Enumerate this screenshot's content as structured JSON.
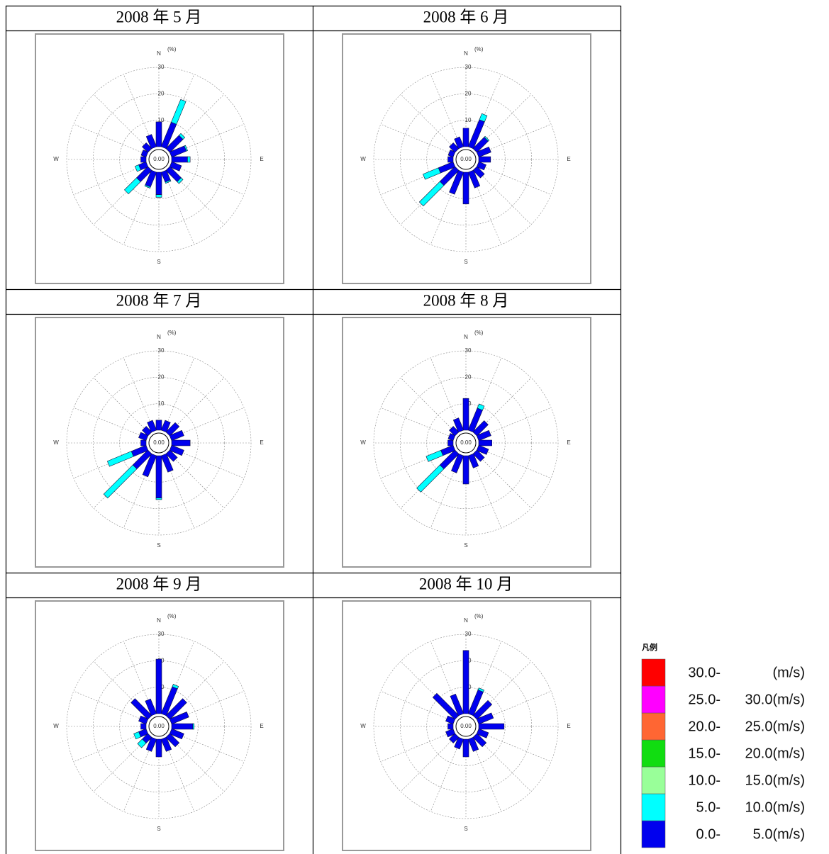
{
  "chart_data": [
    {
      "type": "wind_rose",
      "title": "2008 年 5 月",
      "calm": "0.00",
      "unit": "(%)",
      "rlim": [
        0,
        30
      ],
      "rticks": [
        10,
        20,
        30
      ],
      "categories": [
        "N",
        null,
        null,
        null,
        "E",
        null,
        null,
        null,
        "S",
        null,
        null,
        null,
        "W",
        null,
        null,
        null
      ],
      "series": [
        {
          "values": [
            9.4,
            10,
            7,
            6,
            6,
            4,
            6,
            4,
            8.5,
            6,
            6,
            3,
            2,
            2,
            3,
            5
          ]
        },
        {
          "values": [
            0,
            9.3,
            1,
            0.5,
            1,
            0,
            1,
            0.5,
            1,
            0.5,
            6.5,
            1.5,
            0,
            0,
            0,
            0
          ]
        }
      ]
    },
    {
      "type": "wind_rose",
      "title": "2008 年 6 月",
      "calm": "0.00",
      "unit": "(%)",
      "rlim": [
        0,
        30
      ],
      "rticks": [
        10,
        20,
        30
      ],
      "categories": [
        "N",
        null,
        null,
        null,
        "E",
        null,
        null,
        null,
        "S",
        null,
        null,
        null,
        "W",
        null,
        null,
        null
      ],
      "series": [
        {
          "values": [
            7,
            11,
            6,
            5,
            4.5,
            3,
            4,
            6.4,
            12,
            9,
            8,
            6,
            2,
            2,
            3,
            4
          ]
        },
        {
          "values": [
            0,
            2.5,
            0.5,
            0,
            0,
            0,
            0,
            0,
            0,
            0,
            11,
            6.3,
            0,
            0,
            0,
            0
          ]
        }
      ]
    },
    {
      "type": "wind_rose",
      "title": "2008 年 7 月",
      "calm": "0.00",
      "unit": "(%)",
      "rlim": [
        0,
        30
      ],
      "rticks": [
        10,
        20,
        30
      ],
      "categories": [
        "N",
        null,
        null,
        null,
        "E",
        null,
        null,
        null,
        "S",
        null,
        null,
        null,
        "W",
        null,
        null,
        null
      ],
      "series": [
        {
          "values": [
            3.8,
            4,
            5,
            5,
            7,
            5,
            4,
            6.7,
            16,
            8.6,
            8,
            6,
            2,
            3,
            3,
            4
          ]
        },
        {
          "values": [
            0,
            0,
            0,
            0,
            0,
            0,
            0,
            0,
            0.6,
            0,
            15.6,
            9.8,
            0,
            0,
            0,
            0
          ]
        }
      ]
    },
    {
      "type": "wind_rose",
      "title": "2008 年 8 月",
      "calm": "0.00",
      "unit": "(%)",
      "rlim": [
        0,
        30
      ],
      "rticks": [
        10,
        20,
        30
      ],
      "categories": [
        "N",
        null,
        null,
        null,
        "E",
        null,
        null,
        null,
        "S",
        null,
        null,
        null,
        "W",
        null,
        null,
        null
      ],
      "series": [
        {
          "values": [
            12,
            9,
            6,
            5,
            5,
            4,
            4,
            5,
            10.7,
            7,
            8,
            5,
            2,
            2,
            3,
            5
          ]
        },
        {
          "values": [
            0,
            1.7,
            0,
            0,
            0,
            0,
            0,
            0,
            0,
            0,
            12.4,
            6,
            0,
            0,
            0,
            0
          ]
        }
      ]
    },
    {
      "type": "wind_rose",
      "title": "2008 年 9 月",
      "calm": "0.00",
      "unit": "(%)",
      "rlim": [
        0,
        30
      ],
      "rticks": [
        10,
        20,
        30
      ],
      "categories": [
        "N",
        null,
        null,
        null,
        "E",
        null,
        null,
        null,
        "S",
        null,
        null,
        null,
        "W",
        null,
        null,
        null
      ],
      "series": [
        {
          "values": [
            20.6,
            11,
            9,
            7,
            8,
            5,
            5,
            5,
            6.7,
            5,
            3,
            3,
            2,
            3,
            9,
            6
          ]
        },
        {
          "values": [
            0,
            1,
            0,
            0,
            0.5,
            0,
            0,
            0,
            0,
            0,
            2.5,
            2,
            0,
            0,
            0,
            0
          ]
        }
      ]
    },
    {
      "type": "wind_rose",
      "title": "2008 年 10 月",
      "calm": "0.00",
      "unit": "(%)",
      "rlim": [
        0,
        30
      ],
      "rticks": [
        10,
        20,
        30
      ],
      "categories": [
        "N",
        null,
        null,
        null,
        "E",
        null,
        null,
        null,
        "S",
        null,
        null,
        null,
        "W",
        null,
        null,
        null
      ],
      "series": [
        {
          "values": [
            23.9,
            9.7,
            8,
            6,
            9.6,
            4,
            5,
            5,
            6.7,
            4,
            3,
            3,
            2,
            3,
            11.8,
            8
          ]
        },
        {
          "values": [
            0,
            0.8,
            0,
            0,
            0,
            0,
            0,
            0,
            0,
            0,
            0,
            0,
            0,
            0,
            0,
            0
          ]
        }
      ]
    }
  ],
  "legend": {
    "title": "凡例",
    "items": [
      {
        "from": "0.0-",
        "to": "5.0(m/s)",
        "color": "#0000ee"
      },
      {
        "from": "5.0-",
        "to": "10.0(m/s)",
        "color": "#00ffff"
      },
      {
        "from": "10.0-",
        "to": "15.0(m/s)",
        "color": "#99ff99"
      },
      {
        "from": "15.0-",
        "to": "20.0(m/s)",
        "color": "#11dd11"
      },
      {
        "from": "20.0-",
        "to": "25.0(m/s)",
        "color": "#ff6633"
      },
      {
        "from": "25.0-",
        "to": "30.0(m/s)",
        "color": "#ff00ff"
      },
      {
        "from": "30.0-",
        "to": "(m/s)",
        "color": "#ff0000"
      }
    ]
  }
}
